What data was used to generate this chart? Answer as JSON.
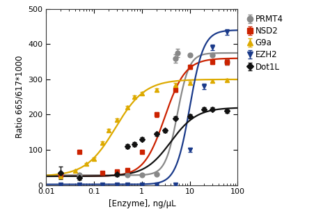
{
  "xlabel": "[Enzyme], ng/μL",
  "ylabel": "Ratio 665/617*1000",
  "xlim": [
    0.01,
    100
  ],
  "ylim": [
    0,
    500
  ],
  "yticks": [
    0,
    100,
    200,
    300,
    400,
    500
  ],
  "series": [
    {
      "name": "PRMT4",
      "color": "#888888",
      "marker": "o",
      "marker_size": 5,
      "ec50": 5.5,
      "hill": 3.5,
      "bottom": 28,
      "top": 375,
      "data_x": [
        0.02,
        0.05,
        0.5,
        1.0,
        2.0,
        5.0,
        5.5,
        10.0,
        30.0,
        60.0
      ],
      "data_y": [
        28,
        28,
        28,
        28,
        30,
        360,
        375,
        370,
        370,
        350
      ],
      "data_yerr": [
        2,
        2,
        2,
        2,
        2,
        12,
        12,
        4,
        4,
        8
      ]
    },
    {
      "name": "NSD2",
      "color": "#cc2200",
      "marker": "s",
      "marker_size": 5,
      "ec50": 3.0,
      "hill": 2.0,
      "bottom": 25,
      "top": 360,
      "data_x": [
        0.02,
        0.05,
        0.15,
        0.3,
        0.5,
        1.0,
        2.0,
        5.0,
        10.0,
        30.0,
        60.0
      ],
      "data_y": [
        28,
        95,
        35,
        38,
        42,
        95,
        200,
        270,
        335,
        350,
        350
      ],
      "data_yerr": [
        2,
        5,
        2,
        2,
        2,
        5,
        6,
        6,
        6,
        6,
        8
      ]
    },
    {
      "name": "G9a",
      "color": "#ddaa00",
      "marker": "^",
      "marker_size": 5,
      "ec50": 0.28,
      "hill": 1.4,
      "bottom": 25,
      "top": 300,
      "data_x": [
        0.02,
        0.04,
        0.07,
        0.1,
        0.15,
        0.2,
        0.3,
        0.5,
        0.7,
        1.0,
        2.0,
        5.0,
        10.0,
        30.0,
        60.0
      ],
      "data_y": [
        25,
        40,
        60,
        75,
        120,
        155,
        185,
        220,
        250,
        260,
        270,
        285,
        290,
        295,
        298
      ],
      "data_yerr": [
        2,
        3,
        3,
        4,
        4,
        4,
        4,
        4,
        4,
        4,
        4,
        4,
        4,
        4,
        4
      ]
    },
    {
      "name": "EZH2",
      "color": "#1a3a8a",
      "marker": "v",
      "marker_size": 5,
      "ec50": 10.0,
      "hill": 3.0,
      "bottom": 2,
      "top": 440,
      "data_x": [
        0.02,
        0.05,
        0.15,
        0.3,
        0.5,
        1.0,
        2.0,
        5.0,
        10.0,
        20.0,
        30.0,
        60.0
      ],
      "data_y": [
        2,
        2,
        2,
        2,
        2,
        2,
        2,
        2,
        100,
        280,
        390,
        435
      ],
      "data_yerr": [
        1,
        1,
        1,
        1,
        1,
        1,
        1,
        2,
        6,
        8,
        8,
        8
      ]
    },
    {
      "name": "Dot1L",
      "color": "#111111",
      "marker": "D",
      "marker_size": 4,
      "ec50": 4.0,
      "hill": 1.6,
      "bottom": 25,
      "top": 220,
      "data_x": [
        0.02,
        0.05,
        0.3,
        0.5,
        0.7,
        1.0,
        2.0,
        3.0,
        5.0,
        10.0,
        20.0,
        30.0,
        60.0
      ],
      "data_y": [
        35,
        20,
        30,
        110,
        115,
        130,
        145,
        155,
        190,
        195,
        215,
        215,
        210
      ],
      "data_yerr": [
        18,
        5,
        5,
        6,
        6,
        5,
        5,
        5,
        5,
        5,
        5,
        5,
        5
      ]
    }
  ],
  "background_color": "#ffffff"
}
